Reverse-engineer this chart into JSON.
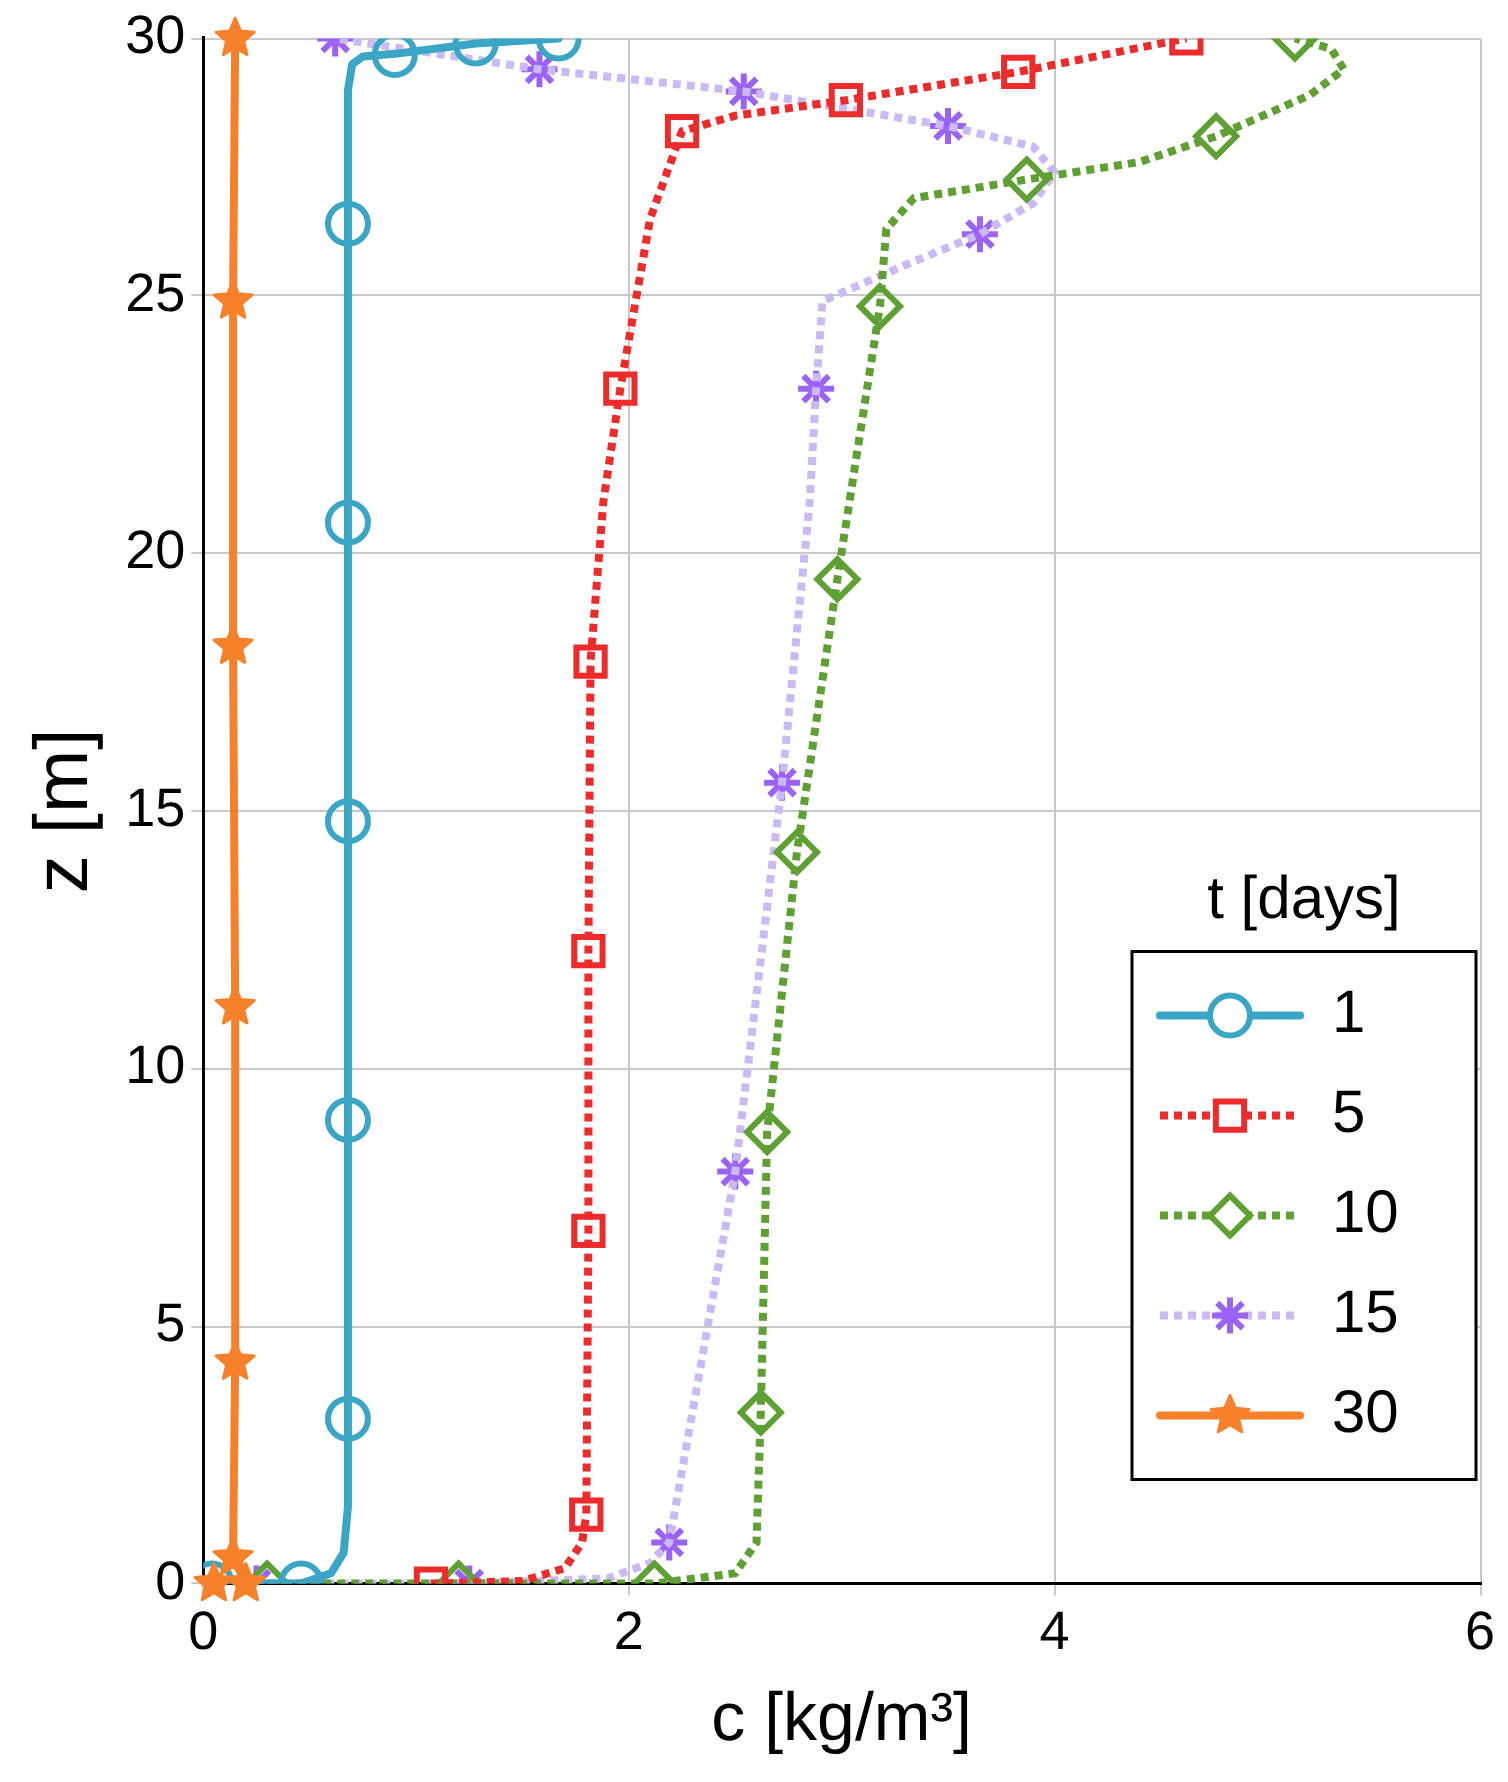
{
  "chart_data": {
    "type": "line",
    "xlabel": "c [kg/m³]",
    "ylabel": "z [m]",
    "legend_title": "t [days]",
    "legend": "bottom right",
    "grid": true,
    "xlim": [
      0,
      6
    ],
    "xticks": [
      0,
      2,
      4,
      6
    ],
    "ylim": [
      0,
      30
    ],
    "yticks": [
      0,
      5,
      10,
      15,
      20,
      25,
      30
    ],
    "series": [
      {
        "name": "1",
        "type": "line",
        "color": "#3aa6c6",
        "line_style": "solid",
        "marker": "none",
        "x": [
          0.04,
          0.46,
          0.6,
          0.66,
          0.68,
          0.68,
          0.7,
          0.75,
          0.9,
          1.28,
          1.67
        ],
        "values": [
          0,
          0,
          0.2,
          0.6,
          1.5,
          29,
          29.5,
          29.65,
          29.7,
          29.9,
          30
        ]
      },
      {
        "type": "scatter",
        "color": "#3aa6c6",
        "marker": "circle",
        "x": [
          0.04,
          0.46,
          0.68,
          0.68,
          0.68,
          0.68,
          0.68,
          0.9,
          1.28,
          1.67
        ],
        "values": [
          0,
          0,
          3.2,
          9.0,
          14.8,
          20.6,
          26.4,
          29.68,
          29.9,
          30
        ]
      },
      {
        "name": "5",
        "type": "line",
        "color": "#ee2b2b",
        "line_style": "dotted",
        "marker": "none",
        "x": [
          1.07,
          1.5,
          1.7,
          1.78,
          1.8,
          1.81,
          1.81,
          1.82,
          1.88,
          1.96,
          2.1,
          2.25,
          2.5,
          3.02,
          3.83,
          4.62
        ],
        "values": [
          0,
          0.05,
          0.3,
          0.8,
          1.34,
          6.85,
          12.28,
          17.9,
          21,
          23.2,
          26.5,
          28.2,
          28.5,
          28.8,
          29.35,
          30
        ]
      },
      {
        "type": "scatter",
        "color": "#ee2b2b",
        "marker": "square",
        "x": [
          1.07,
          1.8,
          1.81,
          1.81,
          1.82,
          1.96,
          2.25,
          3.02,
          3.83,
          4.62
        ],
        "values": [
          0,
          1.34,
          6.85,
          12.28,
          17.9,
          23.2,
          28.2,
          28.8,
          29.35,
          30
        ]
      },
      {
        "name": "10",
        "type": "line",
        "color": "#5fa032",
        "line_style": "dotted",
        "marker": "none",
        "x": [
          0.3,
          1.2,
          2.12,
          2.5,
          2.6,
          2.62,
          2.65,
          2.79,
          2.98,
          3.18,
          3.21,
          3.34,
          3.87,
          4.4,
          4.76,
          5.2,
          5.36,
          5.3,
          5.13
        ],
        "values": [
          0,
          0,
          0,
          0.2,
          0.8,
          3.32,
          8.77,
          14.2,
          19.5,
          24.8,
          26.3,
          26.9,
          27.26,
          27.6,
          28.1,
          28.9,
          29.4,
          29.8,
          30
        ]
      },
      {
        "type": "scatter",
        "color": "#5fa032",
        "marker": "diamond",
        "x": [
          0.3,
          1.2,
          2.12,
          2.62,
          2.65,
          2.79,
          2.98,
          3.18,
          3.87,
          4.76,
          5.13
        ],
        "values": [
          0,
          0,
          0,
          3.32,
          8.77,
          14.2,
          19.5,
          24.8,
          27.26,
          28.1,
          30
        ]
      },
      {
        "name": "15",
        "type": "line",
        "color": "#cbb9f3",
        "line_style": "dotted",
        "marker": "none",
        "x": [
          0.25,
          1.25,
          1.9,
          2.1,
          2.19,
          2.5,
          2.72,
          2.85,
          2.88,
          2.91,
          3.3,
          3.65,
          3.9,
          4.0,
          3.9,
          3.5,
          2.54,
          1.58,
          0.62
        ],
        "values": [
          0,
          0,
          0.1,
          0.4,
          0.8,
          8.0,
          15.55,
          21,
          23.2,
          24.9,
          25.6,
          26.2,
          26.8,
          27.4,
          27.9,
          28.3,
          28.97,
          29.4,
          30
        ]
      },
      {
        "type": "scatter",
        "color": "#9b63f5",
        "marker": "cross",
        "x": [
          0.25,
          1.25,
          2.19,
          2.5,
          2.72,
          2.88,
          3.65,
          3.5,
          2.54,
          1.58,
          0.62
        ],
        "values": [
          0,
          0,
          0.8,
          8.0,
          15.55,
          23.2,
          26.2,
          28.3,
          28.97,
          29.4,
          30
        ]
      },
      {
        "name": "30",
        "type": "line",
        "color": "#f7802a",
        "line_style": "solid",
        "marker": "none",
        "x": [
          0.05,
          0.2,
          0.14,
          0.15,
          0.15,
          0.14,
          0.14,
          0.15
        ],
        "values": [
          0,
          0,
          0.5,
          4.3,
          11.2,
          18.2,
          24.9,
          30
        ]
      },
      {
        "type": "scatter",
        "color": "#f7802a",
        "marker": "star",
        "x": [
          0.05,
          0.2,
          0.14,
          0.15,
          0.15,
          0.14,
          0.14,
          0.15
        ],
        "values": [
          0,
          0,
          0.5,
          4.3,
          11.2,
          18.2,
          24.9,
          30
        ]
      }
    ]
  }
}
